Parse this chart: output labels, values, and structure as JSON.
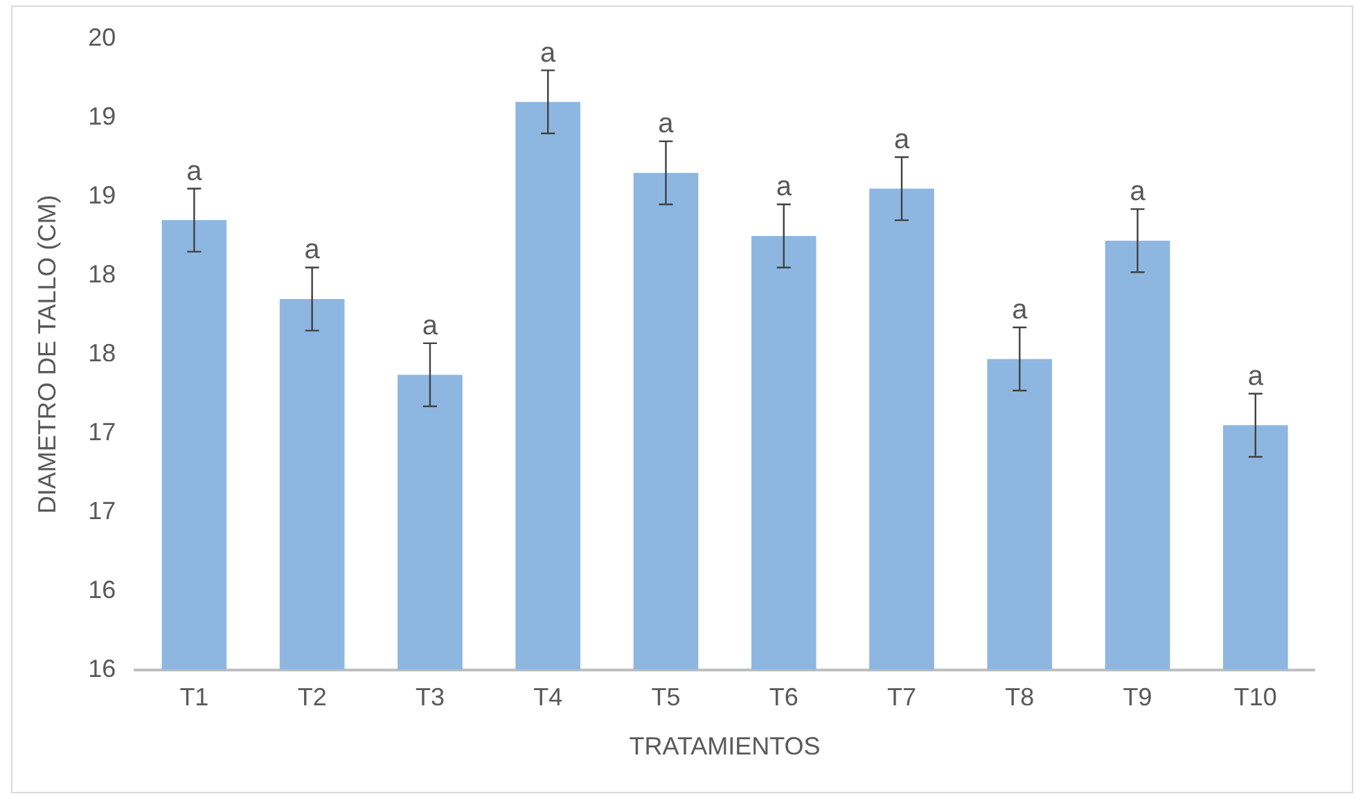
{
  "chart_data": {
    "type": "bar",
    "xlabel": "TRATAMIENTOS",
    "ylabel": "DIAMETRO DE TALLO (CM)",
    "categories": [
      "T1",
      "T2",
      "T3",
      "T4",
      "T5",
      "T6",
      "T7",
      "T8",
      "T9",
      "T10"
    ],
    "values": [
      18.35,
      17.85,
      17.37,
      19.1,
      18.65,
      18.25,
      18.55,
      17.47,
      18.22,
      17.05
    ],
    "errors": [
      0.2,
      0.2,
      0.2,
      0.2,
      0.2,
      0.2,
      0.2,
      0.2,
      0.2,
      0.2
    ],
    "color": "#8db7e1",
    "ylim": [
      15.5,
      19.5
    ],
    "yticks": [
      {
        "value": 15.5,
        "label": "16"
      },
      {
        "value": 16,
        "label": "16"
      },
      {
        "value": 16.5,
        "label": "17"
      },
      {
        "value": 17,
        "label": "17"
      },
      {
        "value": 17.5,
        "label": "18"
      },
      {
        "value": 18,
        "label": "18"
      },
      {
        "value": 18.5,
        "label": "19"
      },
      {
        "value": 19,
        "label": "19"
      },
      {
        "value": 19.5,
        "label": "20"
      }
    ],
    "annotations": [
      {
        "text": "a",
        "x": "T1",
        "y": 18.55
      },
      {
        "text": "a",
        "x": "T2",
        "y": 18.05
      },
      {
        "text": "a",
        "x": "T3",
        "y": 17.57
      },
      {
        "text": "a",
        "x": "T4",
        "y": 19.3
      },
      {
        "text": "a",
        "x": "T5",
        "y": 18.85
      },
      {
        "text": "a",
        "x": "T6",
        "y": 18.45
      },
      {
        "text": "a",
        "x": "T7",
        "y": 18.75
      },
      {
        "text": "a",
        "x": "T8",
        "y": 17.67
      },
      {
        "text": "a",
        "x": "T9",
        "y": 18.42
      },
      {
        "text": "a",
        "x": "T10",
        "y": 17.25
      }
    ],
    "grid": false,
    "legend": false
  }
}
